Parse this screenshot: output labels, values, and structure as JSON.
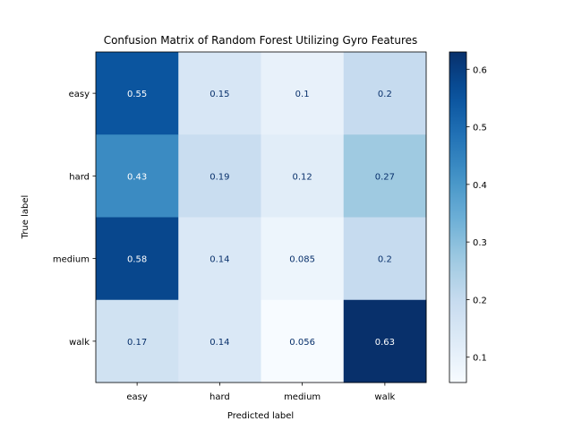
{
  "chart_data": {
    "type": "heatmap",
    "title": "Confusion Matrix of Random Forest Utilizing Gyro Features",
    "xlabel": "Predicted label",
    "ylabel": "True label",
    "x_categories": [
      "easy",
      "hard",
      "medium",
      "walk"
    ],
    "y_categories": [
      "easy",
      "hard",
      "medium",
      "walk"
    ],
    "values": [
      [
        0.55,
        0.15,
        0.1,
        0.2
      ],
      [
        0.43,
        0.19,
        0.12,
        0.27
      ],
      [
        0.58,
        0.14,
        0.085,
        0.2
      ],
      [
        0.17,
        0.14,
        0.056,
        0.63
      ]
    ],
    "cell_labels": [
      [
        "0.55",
        "0.15",
        "0.1",
        "0.2"
      ],
      [
        "0.43",
        "0.19",
        "0.12",
        "0.27"
      ],
      [
        "0.58",
        "0.14",
        "0.085",
        "0.2"
      ],
      [
        "0.17",
        "0.14",
        "0.056",
        "0.63"
      ]
    ],
    "colormap": "Blues",
    "colorbar": {
      "range": [
        0.056,
        0.63
      ],
      "ticks": [
        0.1,
        0.2,
        0.3,
        0.4,
        0.5,
        0.6
      ],
      "tick_labels": [
        "0.1",
        "0.2",
        "0.3",
        "0.4",
        "0.5",
        "0.6"
      ]
    },
    "text_colors": {
      "dark": "#08306b",
      "light": "#ffffff"
    },
    "grid": false
  }
}
